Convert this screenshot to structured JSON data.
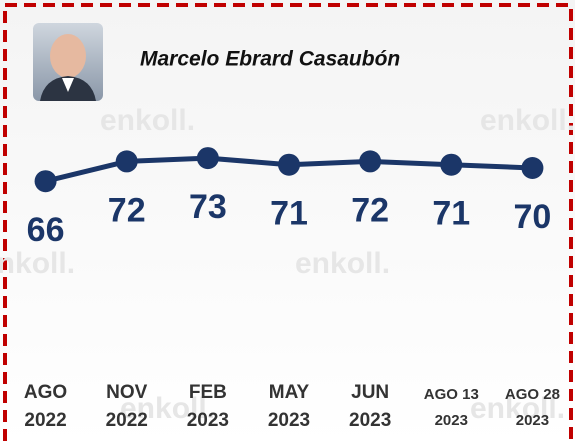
{
  "chart_data": {
    "type": "line",
    "title": "Marcelo Ebrard Casaubón",
    "watermark": "enkoll.",
    "categories": [
      [
        "AGO",
        "2022"
      ],
      [
        "NOV",
        "2022"
      ],
      [
        "FEB",
        "2023"
      ],
      [
        "MAY",
        "2023"
      ],
      [
        "JUN",
        "2023"
      ],
      [
        "AGO 13",
        "2023"
      ],
      [
        "AGO 28",
        "2023"
      ]
    ],
    "values": [
      66,
      72,
      73,
      71,
      72,
      71,
      70
    ],
    "color": "#1b3668",
    "ylim": [
      60,
      80
    ]
  }
}
